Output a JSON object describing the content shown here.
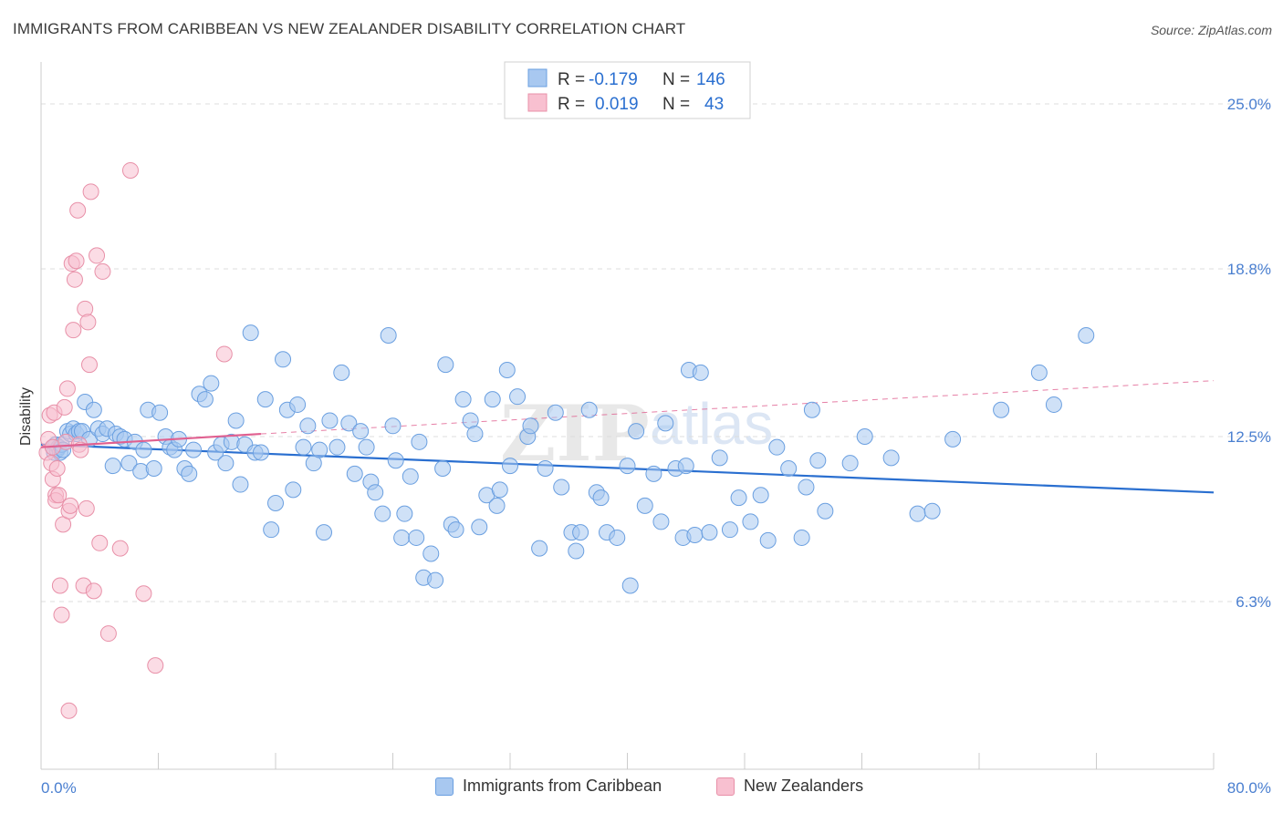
{
  "header": {
    "title": "IMMIGRANTS FROM CARIBBEAN VS NEW ZEALANDER DISABILITY CORRELATION CHART",
    "source": "Source: ZipAtlas.com"
  },
  "legend_box": {
    "rows": [
      {
        "r_label": "R =",
        "r_value": "-0.179",
        "n_label": "N =",
        "n_value": "146"
      },
      {
        "r_label": "R =",
        "r_value": "0.019",
        "n_label": "N =",
        "n_value": "43"
      }
    ]
  },
  "bottom_legend": {
    "items": [
      {
        "label": "Immigrants from Caribbean"
      },
      {
        "label": "New Zealanders"
      }
    ]
  },
  "watermark": {
    "zip": "ZIP",
    "atlas": "atlas"
  },
  "colors": {
    "blue_fill": "#a8c8f0",
    "blue_stroke": "#6a9fe0",
    "blue_line": "#2a6fd0",
    "pink_fill": "#f8c0d0",
    "pink_stroke": "#e890a8",
    "pink_line": "#e06090",
    "tick": "#4a7fd0",
    "grid": "#dddddd"
  },
  "chart_data": {
    "type": "scatter",
    "title": "IMMIGRANTS FROM CARIBBEAN VS NEW ZEALANDER DISABILITY CORRELATION CHART",
    "xlabel": "",
    "ylabel": "Disability",
    "xlim": [
      0,
      80
    ],
    "ylim": [
      0,
      26.3
    ],
    "x_tick_labels": [
      "0.0%",
      "80.0%"
    ],
    "y_ticks": [
      6.3,
      12.5,
      18.8,
      25.0
    ],
    "y_tick_labels": [
      "6.3%",
      "12.5%",
      "18.8%",
      "25.0%"
    ],
    "grid": "horizontal dashed",
    "legend_position": "top-center",
    "series": [
      {
        "name": "Immigrants from Caribbean",
        "color": "#6a9fe0",
        "r": -0.179,
        "n": 146,
        "trend": {
          "x": [
            0,
            80
          ],
          "y": [
            12.2,
            10.4
          ],
          "style": "solid"
        },
        "points": [
          [
            0.8,
            12.1
          ],
          [
            0.9,
            11.9
          ],
          [
            1,
            12.2
          ],
          [
            1.1,
            12.0
          ],
          [
            1.2,
            12.1
          ],
          [
            1.3,
            11.9
          ],
          [
            1.4,
            12.2
          ],
          [
            1.5,
            12.0
          ],
          [
            1.8,
            12.7
          ],
          [
            2.0,
            12.6
          ],
          [
            2.2,
            12.8
          ],
          [
            2.4,
            12.6
          ],
          [
            2.6,
            12.7
          ],
          [
            2.8,
            12.7
          ],
          [
            3.0,
            13.8
          ],
          [
            3.3,
            12.4
          ],
          [
            3.6,
            13.5
          ],
          [
            3.9,
            12.8
          ],
          [
            4.2,
            12.6
          ],
          [
            4.5,
            12.8
          ],
          [
            4.9,
            11.4
          ],
          [
            5.1,
            12.6
          ],
          [
            5.4,
            12.5
          ],
          [
            5.7,
            12.4
          ],
          [
            6.0,
            11.5
          ],
          [
            6.4,
            12.3
          ],
          [
            6.8,
            11.2
          ],
          [
            7.0,
            12.0
          ],
          [
            7.3,
            13.5
          ],
          [
            7.7,
            11.3
          ],
          [
            8.1,
            13.4
          ],
          [
            8.5,
            12.5
          ],
          [
            8.8,
            12.1
          ],
          [
            9.1,
            12.0
          ],
          [
            9.4,
            12.4
          ],
          [
            9.8,
            11.3
          ],
          [
            10.1,
            11.1
          ],
          [
            10.4,
            12.0
          ],
          [
            10.8,
            14.1
          ],
          [
            11.2,
            13.9
          ],
          [
            11.6,
            14.5
          ],
          [
            11.9,
            11.9
          ],
          [
            12.3,
            12.2
          ],
          [
            12.6,
            11.5
          ],
          [
            13.0,
            12.3
          ],
          [
            13.3,
            13.1
          ],
          [
            13.6,
            10.7
          ],
          [
            13.9,
            12.2
          ],
          [
            14.3,
            16.4
          ],
          [
            14.6,
            11.9
          ],
          [
            15.0,
            11.9
          ],
          [
            15.3,
            13.9
          ],
          [
            15.7,
            9.0
          ],
          [
            16.0,
            10.0
          ],
          [
            16.5,
            15.4
          ],
          [
            16.8,
            13.5
          ],
          [
            17.2,
            10.5
          ],
          [
            17.5,
            13.7
          ],
          [
            17.9,
            12.1
          ],
          [
            18.2,
            12.9
          ],
          [
            18.6,
            11.5
          ],
          [
            19.0,
            12.0
          ],
          [
            19.3,
            8.9
          ],
          [
            19.7,
            13.1
          ],
          [
            20.2,
            12.1
          ],
          [
            20.5,
            14.9
          ],
          [
            21.0,
            13.0
          ],
          [
            21.4,
            11.1
          ],
          [
            21.8,
            12.7
          ],
          [
            22.2,
            12.1
          ],
          [
            22.5,
            10.8
          ],
          [
            22.8,
            10.4
          ],
          [
            23.3,
            9.6
          ],
          [
            23.7,
            16.3
          ],
          [
            24.0,
            12.9
          ],
          [
            24.2,
            11.6
          ],
          [
            24.6,
            8.7
          ],
          [
            24.8,
            9.6
          ],
          [
            25.2,
            11.0
          ],
          [
            25.6,
            8.7
          ],
          [
            25.8,
            12.3
          ],
          [
            26.1,
            7.2
          ],
          [
            26.6,
            8.1
          ],
          [
            26.9,
            7.1
          ],
          [
            27.4,
            11.3
          ],
          [
            27.6,
            15.2
          ],
          [
            28.0,
            9.2
          ],
          [
            28.3,
            9.0
          ],
          [
            28.8,
            13.9
          ],
          [
            29.3,
            13.1
          ],
          [
            29.6,
            12.6
          ],
          [
            29.9,
            9.1
          ],
          [
            30.4,
            10.3
          ],
          [
            30.8,
            13.9
          ],
          [
            31.1,
            9.9
          ],
          [
            31.3,
            10.5
          ],
          [
            31.8,
            15.0
          ],
          [
            32.0,
            11.4
          ],
          [
            32.5,
            14.0
          ],
          [
            33.2,
            12.5
          ],
          [
            33.4,
            12.9
          ],
          [
            34.0,
            8.3
          ],
          [
            34.4,
            11.3
          ],
          [
            35.1,
            13.4
          ],
          [
            35.5,
            10.6
          ],
          [
            36.2,
            8.9
          ],
          [
            36.5,
            8.2
          ],
          [
            36.8,
            8.9
          ],
          [
            37.4,
            13.5
          ],
          [
            37.9,
            10.4
          ],
          [
            38.2,
            10.2
          ],
          [
            38.6,
            8.9
          ],
          [
            39.3,
            8.7
          ],
          [
            40.0,
            11.4
          ],
          [
            40.2,
            6.9
          ],
          [
            40.6,
            12.7
          ],
          [
            41.2,
            9.9
          ],
          [
            41.8,
            11.1
          ],
          [
            42.3,
            9.3
          ],
          [
            42.6,
            13.0
          ],
          [
            43.3,
            11.3
          ],
          [
            43.8,
            8.7
          ],
          [
            44.2,
            15.0
          ],
          [
            44.6,
            8.8
          ],
          [
            45.0,
            14.9
          ],
          [
            45.6,
            8.9
          ],
          [
            46.3,
            11.7
          ],
          [
            47.0,
            9.0
          ],
          [
            47.6,
            10.2
          ],
          [
            48.4,
            9.3
          ],
          [
            49.1,
            10.3
          ],
          [
            49.6,
            8.6
          ],
          [
            50.2,
            12.1
          ],
          [
            51.0,
            11.3
          ],
          [
            51.9,
            8.7
          ],
          [
            52.2,
            10.6
          ],
          [
            52.6,
            13.5
          ],
          [
            53.5,
            9.7
          ],
          [
            55.2,
            11.5
          ],
          [
            56.2,
            12.5
          ],
          [
            58.0,
            11.7
          ],
          [
            59.8,
            9.6
          ],
          [
            60.8,
            9.7
          ],
          [
            62.2,
            12.4
          ],
          [
            65.5,
            13.5
          ],
          [
            68.1,
            14.9
          ],
          [
            69.1,
            13.7
          ],
          [
            71.3,
            16.3
          ],
          [
            53.0,
            11.6
          ],
          [
            44.0,
            11.4
          ]
        ]
      },
      {
        "name": "New Zealanders",
        "color": "#e890a8",
        "r": 0.019,
        "n": 43,
        "trend": {
          "x": [
            0,
            15
          ],
          "y": [
            12.1,
            12.6
          ],
          "style": "solid",
          "extended": {
            "x": [
              15,
              80
            ],
            "y": [
              12.6,
              14.6
            ],
            "style": "dashed"
          }
        },
        "points": [
          [
            0.4,
            11.9
          ],
          [
            0.5,
            12.4
          ],
          [
            0.6,
            13.3
          ],
          [
            0.7,
            11.5
          ],
          [
            0.8,
            10.9
          ],
          [
            0.8,
            12.1
          ],
          [
            0.9,
            13.4
          ],
          [
            1.0,
            10.3
          ],
          [
            1.0,
            10.1
          ],
          [
            1.1,
            11.3
          ],
          [
            1.2,
            10.3
          ],
          [
            1.3,
            6.9
          ],
          [
            1.4,
            5.8
          ],
          [
            1.5,
            9.2
          ],
          [
            1.6,
            13.6
          ],
          [
            1.7,
            12.3
          ],
          [
            1.8,
            14.3
          ],
          [
            1.9,
            9.7
          ],
          [
            1.9,
            2.2
          ],
          [
            2.0,
            9.9
          ],
          [
            2.1,
            19.0
          ],
          [
            2.2,
            16.5
          ],
          [
            2.3,
            18.4
          ],
          [
            2.4,
            19.1
          ],
          [
            2.5,
            21.0
          ],
          [
            2.6,
            12.2
          ],
          [
            2.7,
            12.0
          ],
          [
            2.9,
            6.9
          ],
          [
            3.0,
            17.3
          ],
          [
            3.1,
            9.8
          ],
          [
            3.2,
            16.8
          ],
          [
            3.3,
            15.2
          ],
          [
            3.4,
            21.7
          ],
          [
            3.6,
            6.7
          ],
          [
            3.8,
            19.3
          ],
          [
            4.0,
            8.5
          ],
          [
            4.2,
            18.7
          ],
          [
            4.6,
            5.1
          ],
          [
            5.4,
            8.3
          ],
          [
            6.1,
            22.5
          ],
          [
            7.0,
            6.6
          ],
          [
            7.8,
            3.9
          ],
          [
            12.5,
            15.6
          ]
        ]
      }
    ]
  }
}
